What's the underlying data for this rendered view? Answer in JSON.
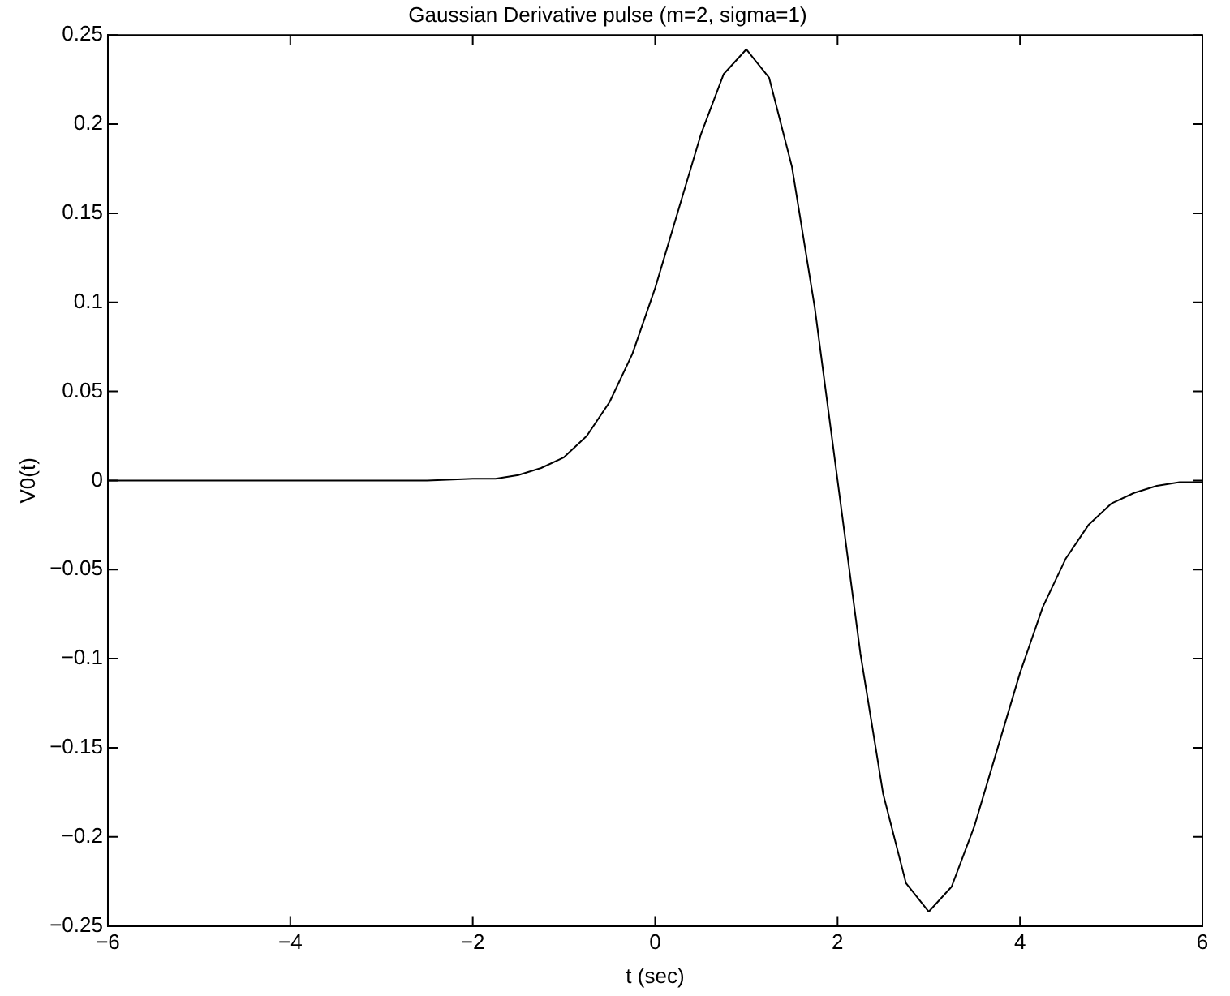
{
  "chart_data": {
    "type": "line",
    "title": "Gaussian Derivative pulse (m=2, sigma=1)",
    "xlabel": "t (sec)",
    "ylabel": "V0(t)",
    "x": [
      -6,
      -5,
      -4,
      -3,
      -2.5,
      -2,
      -1.75,
      -1.5,
      -1.25,
      -1,
      -0.75,
      -0.5,
      -0.25,
      0,
      0.25,
      0.5,
      0.75,
      1,
      1.25,
      1.5,
      1.75,
      2,
      2.25,
      2.5,
      2.75,
      3,
      3.25,
      3.5,
      3.75,
      4,
      4.25,
      4.5,
      4.75,
      5,
      5.25,
      5.5,
      5.75,
      6
    ],
    "series": [
      {
        "color": "#000000",
        "values": [
          0,
          0,
          0,
          0,
          0,
          0.001,
          0.001,
          0.003,
          0.007,
          0.013,
          0.025,
          0.044,
          0.071,
          0.108,
          0.151,
          0.194,
          0.228,
          0.242,
          0.226,
          0.176,
          0.097,
          0,
          -0.097,
          -0.176,
          -0.226,
          -0.242,
          -0.228,
          -0.194,
          -0.151,
          -0.108,
          -0.071,
          -0.044,
          -0.025,
          -0.013,
          -0.007,
          -0.003,
          -0.001,
          -0.001
        ]
      }
    ],
    "xlim": [
      -6,
      6
    ],
    "xticks": [
      -6,
      -4,
      -2,
      0,
      2,
      4,
      6
    ],
    "ylim": [
      -0.25,
      0.25
    ],
    "yticks": [
      -0.25,
      -0.2,
      -0.15,
      -0.1,
      -0.05,
      0,
      0.05,
      0.1,
      0.15,
      0.2,
      0.25
    ],
    "grid": false,
    "legend": false,
    "marker": "none",
    "line_style": "solid"
  }
}
